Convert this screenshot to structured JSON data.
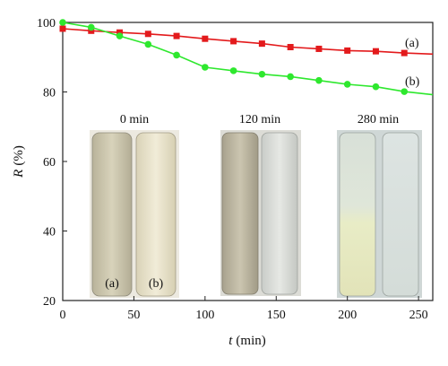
{
  "chart_data": {
    "type": "line",
    "xlabel_var": "t",
    "xlabel_unit": "(min)",
    "ylabel_var": "R",
    "ylabel_unit": "(%)",
    "xlim": [
      0,
      260
    ],
    "ylim": [
      20,
      100
    ],
    "xticks": [
      0,
      50,
      100,
      150,
      200,
      250
    ],
    "yticks": [
      20,
      40,
      60,
      80,
      100
    ],
    "grid": false,
    "series": [
      {
        "name": "(a)",
        "color": "#e31a1c",
        "marker": "square",
        "x": [
          0,
          20,
          40,
          60,
          80,
          100,
          120,
          140,
          160,
          180,
          200,
          220,
          240,
          260
        ],
        "y": [
          98.2,
          97.6,
          97.1,
          96.7,
          96.1,
          95.3,
          94.6,
          93.9,
          92.9,
          92.4,
          91.9,
          91.7,
          91.2,
          90.9
        ]
      },
      {
        "name": "(b)",
        "color": "#2ee82e",
        "marker": "circle",
        "x": [
          0,
          20,
          40,
          60,
          80,
          100,
          120,
          140,
          160,
          180,
          200,
          220,
          240,
          260
        ],
        "y": [
          100.0,
          98.6,
          96.1,
          93.7,
          90.6,
          87.1,
          86.1,
          85.1,
          84.4,
          83.3,
          82.2,
          81.5,
          80.1,
          79.2
        ]
      }
    ],
    "inset_photos": [
      {
        "time_label": "0 min",
        "tube_labels": [
          "(a)",
          "(b)"
        ]
      },
      {
        "time_label": "120 min",
        "tube_labels": []
      },
      {
        "time_label": "280 min",
        "tube_labels": []
      }
    ]
  }
}
